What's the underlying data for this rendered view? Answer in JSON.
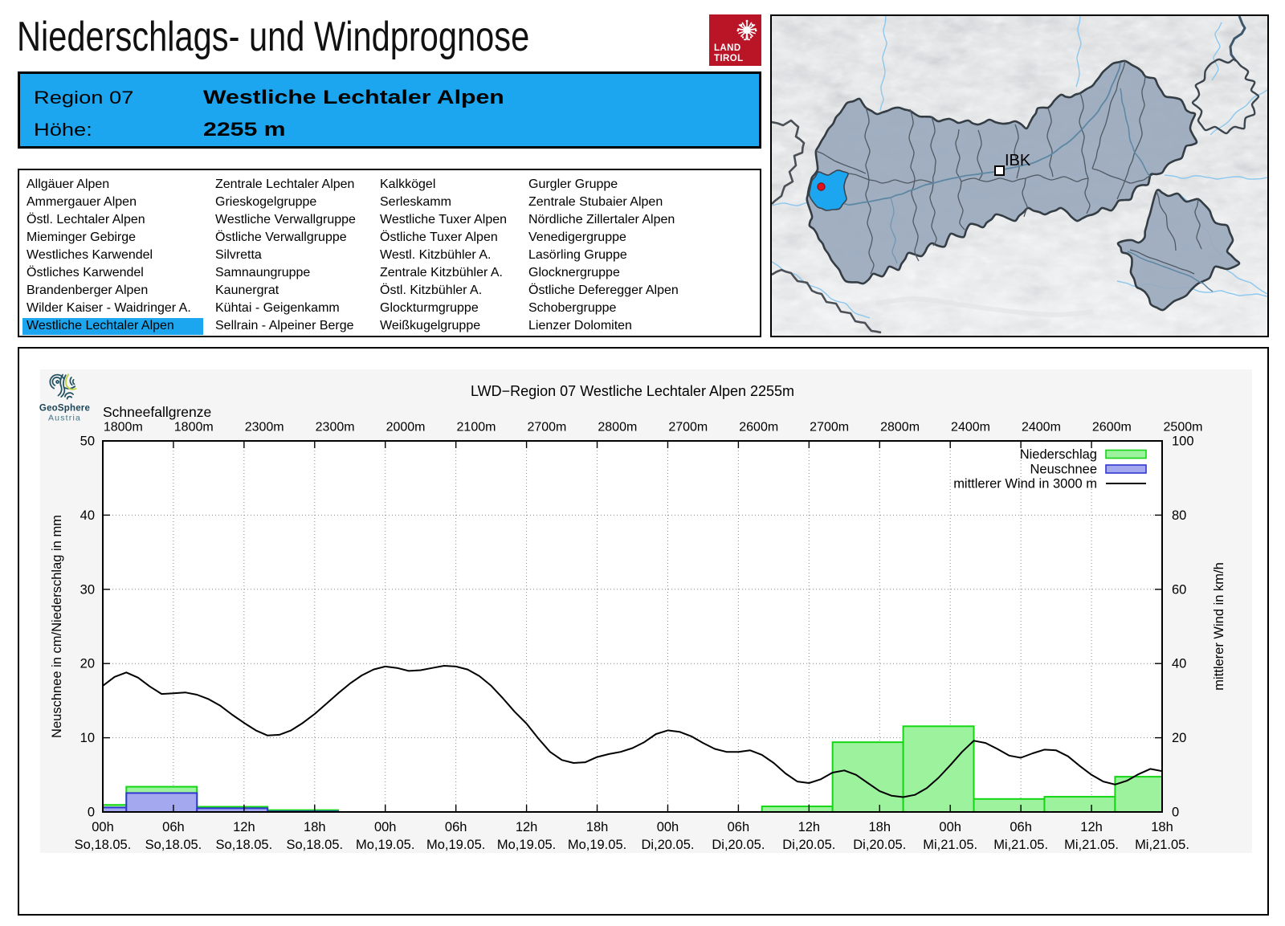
{
  "page": {
    "title": "Niederschlags- und Windprognose"
  },
  "land_tirol_logo": {
    "line1": "LAND",
    "line2": "TIROL",
    "color": "#ba1527"
  },
  "region_header": {
    "accent_color": "#1da6f0",
    "region_label": "Region 07",
    "region_name": "Westliche Lechtaler Alpen",
    "altitude_label": "Höhe:",
    "altitude_value": "2255 m"
  },
  "region_list": {
    "highlighted": "Westliche Lechtaler Alpen",
    "columns": [
      [
        "Allgäuer Alpen",
        "Ammergauer Alpen",
        "Östl. Lechtaler Alpen",
        "Mieminger Gebirge",
        "Westliches Karwendel",
        "Östliches Karwendel",
        "Brandenberger Alpen",
        "Wilder Kaiser - Waidringer A.",
        "Westliche Lechtaler Alpen"
      ],
      [
        "Zentrale Lechtaler Alpen",
        "Grieskogelgruppe",
        "Westliche Verwallgruppe",
        "Östliche Verwallgruppe",
        "Silvretta",
        "Samnaungruppe",
        "Kaunergrat",
        "Kühtai - Geigenkamm",
        "Sellrain - Alpeiner Berge"
      ],
      [
        "Kalkkögel",
        "Serleskamm",
        "Westliche Tuxer Alpen",
        "Östliche Tuxer Alpen",
        "Westl. Kitzbühler A.",
        "Zentrale Kitzbühler A.",
        "Östl. Kitzbühler A.",
        "Glockturmgruppe",
        "Weißkugelgruppe"
      ],
      [
        "Gurgler Gruppe",
        "Zentrale Stubaier Alpen",
        "Nördliche Zillertaler Alpen",
        "Venedigergruppe",
        "Lasörling Gruppe",
        "Glocknergruppe",
        "Östliche Deferegger Alpen",
        "Schobergruppe",
        "Lienzer Dolomiten"
      ]
    ]
  },
  "map": {
    "city_label": "IBK"
  },
  "geosphere_logo": {
    "name": "GeoSphere",
    "sub": "Austria"
  },
  "chart_data": {
    "type": "composite",
    "title": "LWD−Region 07 Westliche Lechtaler Alpen 2255m",
    "snowline_label": "Schneefallgrenze",
    "snowline_values": [
      "1800m",
      "1800m",
      "2300m",
      "2300m",
      "2000m",
      "2100m",
      "2700m",
      "2800m",
      "2700m",
      "2600m",
      "2700m",
      "2800m",
      "2400m",
      "2400m",
      "2600m",
      "2500m"
    ],
    "ylabel_left": "Neuschnee in cm/Niederschlag in mm",
    "ylabel_right": "mittlerer Wind in km/h",
    "ylim_left": [
      0,
      50
    ],
    "yticks_left": [
      0,
      10,
      20,
      30,
      40,
      50
    ],
    "ylim_right": [
      0,
      100
    ],
    "yticks_right": [
      0,
      20,
      40,
      60,
      80,
      100
    ],
    "x_hours_range": [
      0,
      90
    ],
    "xticks": [
      {
        "hour": 0,
        "time": "00h",
        "date": "So,18.05."
      },
      {
        "hour": 6,
        "time": "06h",
        "date": "So,18.05."
      },
      {
        "hour": 12,
        "time": "12h",
        "date": "So,18.05."
      },
      {
        "hour": 18,
        "time": "18h",
        "date": "So,18.05."
      },
      {
        "hour": 24,
        "time": "00h",
        "date": "Mo,19.05."
      },
      {
        "hour": 30,
        "time": "06h",
        "date": "Mo,19.05."
      },
      {
        "hour": 36,
        "time": "12h",
        "date": "Mo,19.05."
      },
      {
        "hour": 42,
        "time": "18h",
        "date": "Mo,19.05."
      },
      {
        "hour": 48,
        "time": "00h",
        "date": "Di,20.05."
      },
      {
        "hour": 54,
        "time": "06h",
        "date": "Di,20.05."
      },
      {
        "hour": 60,
        "time": "12h",
        "date": "Di,20.05."
      },
      {
        "hour": 66,
        "time": "18h",
        "date": "Di,20.05."
      },
      {
        "hour": 72,
        "time": "00h",
        "date": "Mi,21.05."
      },
      {
        "hour": 78,
        "time": "06h",
        "date": "Mi,21.05."
      },
      {
        "hour": 84,
        "time": "12h",
        "date": "Mi,21.05."
      },
      {
        "hour": 90,
        "time": "18h",
        "date": "Mi,21.05."
      }
    ],
    "legend": [
      {
        "label": "Niederschlag",
        "swatch": "bar",
        "fill": "#9df29d",
        "stroke": "#15d615"
      },
      {
        "label": "Neuschnee",
        "swatch": "bar",
        "fill": "#a3a8ef",
        "stroke": "#3136d2"
      },
      {
        "label": "mittlerer Wind in 3000 m",
        "swatch": "line",
        "stroke": "#000000"
      }
    ],
    "precipitation_bars_mm": [
      {
        "start_hour": 0,
        "end_hour": 2,
        "value": 0.95
      },
      {
        "start_hour": 2,
        "end_hour": 8,
        "value": 3.4
      },
      {
        "start_hour": 8,
        "end_hour": 14,
        "value": 0.7
      },
      {
        "start_hour": 14,
        "end_hour": 20,
        "value": 0.25
      },
      {
        "start_hour": 56,
        "end_hour": 62,
        "value": 0.75
      },
      {
        "start_hour": 62,
        "end_hour": 68,
        "value": 9.4
      },
      {
        "start_hour": 68,
        "end_hour": 74,
        "value": 11.55
      },
      {
        "start_hour": 74,
        "end_hour": 80,
        "value": 1.75
      },
      {
        "start_hour": 80,
        "end_hour": 86,
        "value": 2.05
      },
      {
        "start_hour": 86,
        "end_hour": 90,
        "value": 4.75
      }
    ],
    "new_snow_bars_cm": [
      {
        "start_hour": 0,
        "end_hour": 2,
        "value": 0.6
      },
      {
        "start_hour": 2,
        "end_hour": 8,
        "value": 2.55
      },
      {
        "start_hour": 8,
        "end_hour": 14,
        "value": 0.5
      },
      {
        "start_hour": 14,
        "end_hour": 20,
        "value": 0.08
      }
    ],
    "wind_kmh": {
      "start_hour": 0,
      "step_hours": 1,
      "values": [
        34.0,
        36.4,
        37.6,
        36.2,
        33.8,
        31.8,
        32.0,
        32.2,
        31.6,
        30.4,
        28.6,
        26.2,
        24.0,
        22.0,
        20.6,
        20.8,
        22.0,
        24.0,
        26.4,
        29.2,
        32.0,
        34.6,
        36.8,
        38.4,
        39.2,
        38.8,
        38.0,
        38.2,
        38.8,
        39.4,
        39.2,
        38.4,
        36.6,
        34.0,
        30.6,
        27.0,
        23.8,
        19.8,
        16.2,
        14.0,
        13.2,
        13.4,
        14.8,
        15.6,
        16.2,
        17.2,
        18.8,
        21.0,
        22.0,
        21.6,
        20.4,
        18.6,
        17.0,
        16.2,
        16.2,
        16.6,
        15.4,
        13.2,
        10.4,
        8.2,
        7.8,
        8.8,
        10.6,
        11.2,
        10.0,
        7.8,
        5.6,
        4.4,
        4.0,
        4.6,
        6.4,
        9.2,
        12.6,
        16.2,
        19.2,
        18.6,
        17.0,
        15.2,
        14.6,
        15.8,
        16.8,
        16.6,
        15.0,
        12.4,
        10.0,
        8.2,
        7.4,
        8.4,
        10.2,
        11.6,
        11.0
      ]
    }
  }
}
